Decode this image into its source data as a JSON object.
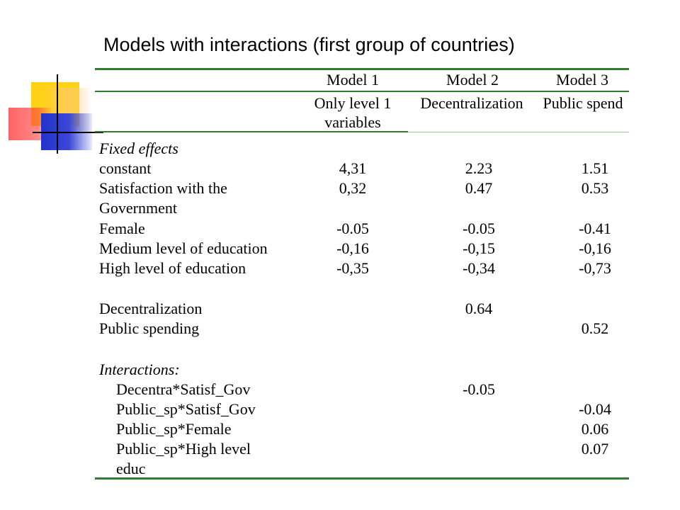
{
  "title": "Models with interactions (first group of countries)",
  "models": [
    {
      "name": "Model 1",
      "sub1": "Only level 1",
      "sub2": "variables"
    },
    {
      "name": "Model 2",
      "sub1": "Decentralization",
      "sub2": ""
    },
    {
      "name": "Model 3",
      "sub1": "Public spend",
      "sub2": ""
    }
  ],
  "sections": {
    "fixed": "Fixed effects",
    "interactions": "Interactions:"
  },
  "rows": [
    {
      "label": "constant",
      "m1": "4,31",
      "m2": "2.23",
      "m3": "1.51"
    },
    {
      "label": "Satisfaction with the",
      "m1": "0,32",
      "m2": "0.47",
      "m3": "0.53"
    },
    {
      "label": "Government",
      "m1": "",
      "m2": "",
      "m3": ""
    },
    {
      "label": "Female",
      "m1": "-0.05",
      "m2": "-0.05",
      "m3": "-0.41"
    },
    {
      "label": "Medium level of education",
      "m1": "-0,16",
      "m2": "-0,15",
      "m3": "-0,16"
    },
    {
      "label": "High level of education",
      "m1": "-0,35",
      "m2": "-0,34",
      "m3": "-0,73"
    },
    {
      "label": "Decentralization",
      "m1": "",
      "m2": "0.64",
      "m3": ""
    },
    {
      "label": "Public spending",
      "m1": "",
      "m2": "",
      "m3": "0.52"
    },
    {
      "label": "Decentra*Satisf_Gov",
      "m1": "",
      "m2": "-0.05",
      "m3": ""
    },
    {
      "label": "Public_sp*Satisf_Gov",
      "m1": "",
      "m2": "",
      "m3": "-0.04"
    },
    {
      "label": "Public_sp*Female",
      "m1": "",
      "m2": "",
      "m3": "0.06"
    },
    {
      "label": "Public_sp*High level",
      "m1": "",
      "m2": "",
      "m3": "0.07"
    },
    {
      "label": "educ",
      "m1": "",
      "m2": "",
      "m3": ""
    }
  ]
}
